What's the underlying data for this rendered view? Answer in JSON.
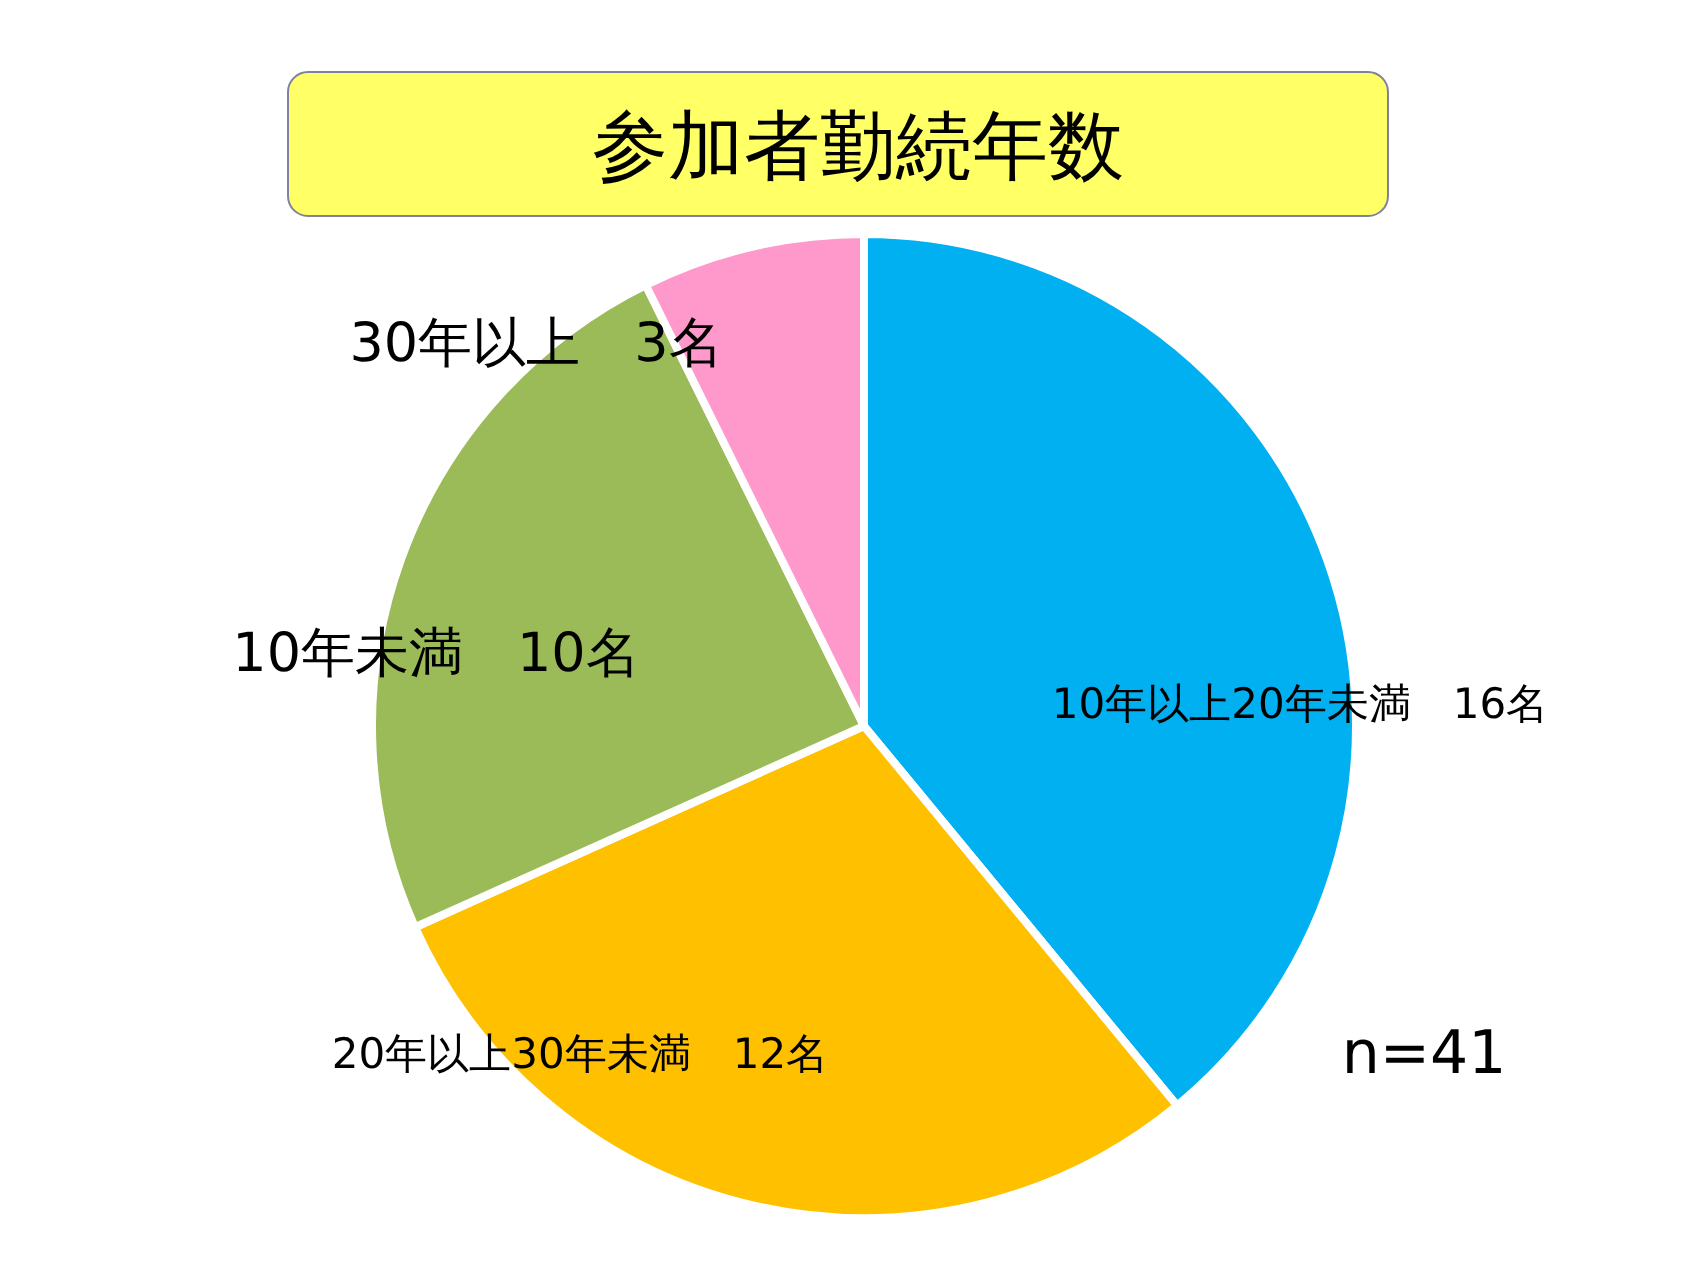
{
  "chart_data": {
    "type": "pie",
    "title": "参加者勤続年数",
    "categories": [
      "10年以上20年未満",
      "20年以上30年未満",
      "10年未満",
      "30年以上"
    ],
    "values": [
      16,
      12,
      10,
      3
    ],
    "value_labels": [
      "16名",
      "12名",
      "10名",
      "3名"
    ],
    "colors": [
      "#00b0f0",
      "#ffc000",
      "#9bbb59",
      "#ff99cc"
    ],
    "annotations": [
      "n=41"
    ]
  }
}
